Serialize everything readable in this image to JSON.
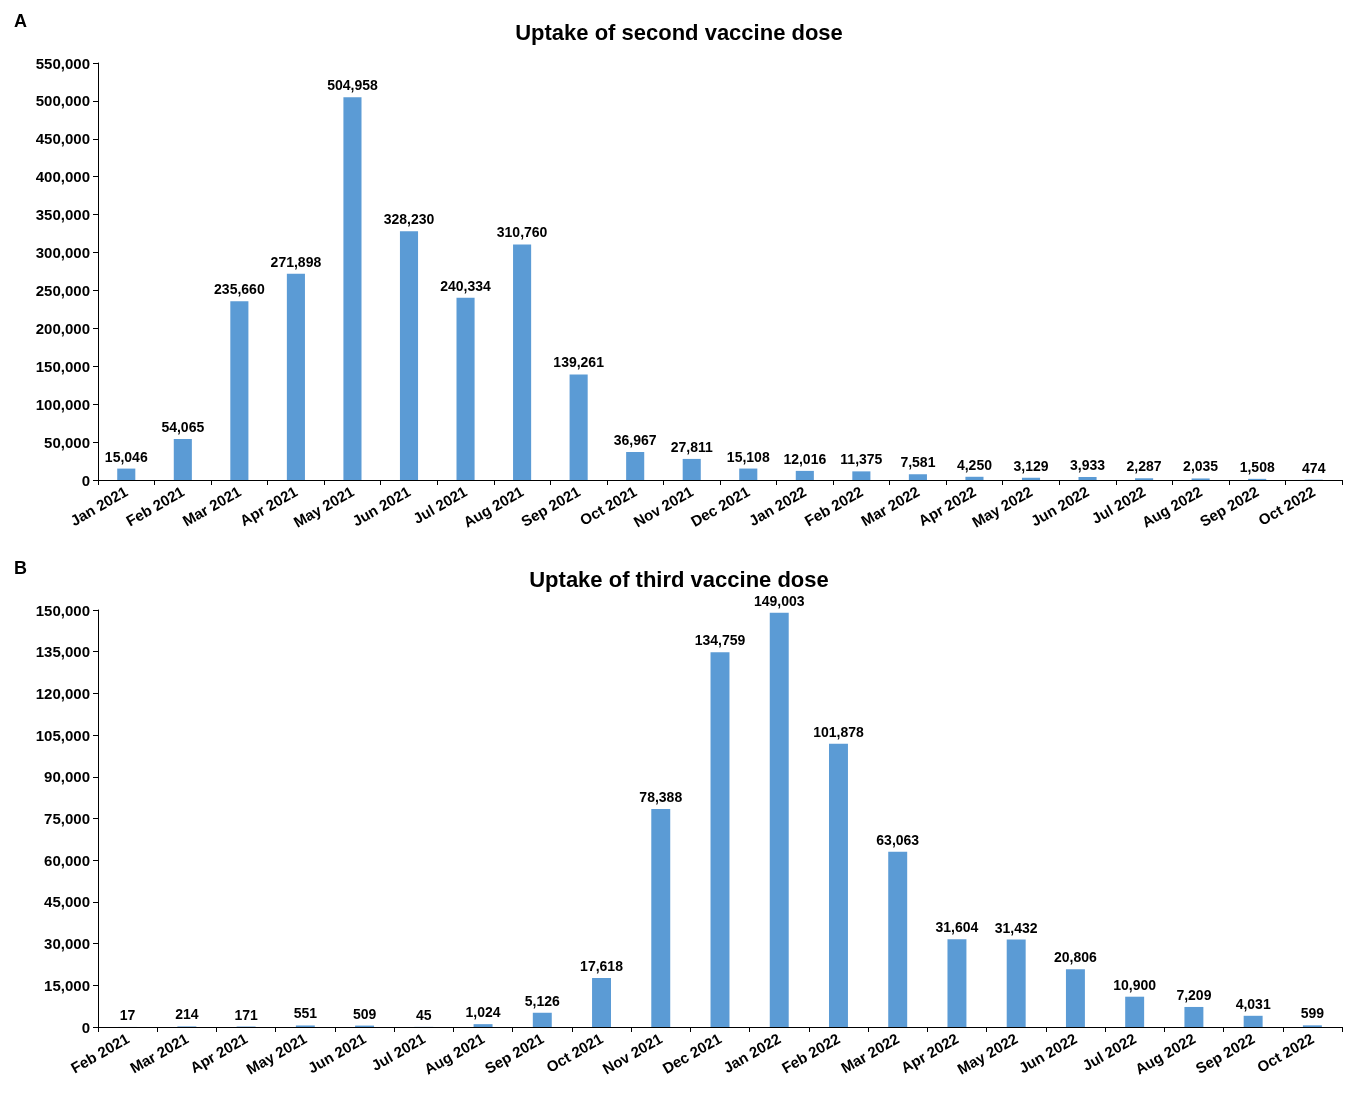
{
  "chart_data": [
    {
      "type": "bar",
      "title": "Uptake of second vaccine dose",
      "annotations": [
        "A"
      ],
      "categories": [
        "Jan 2021",
        "Feb 2021",
        "Mar 2021",
        "Apr 2021",
        "May 2021",
        "Jun 2021",
        "Jul 2021",
        "Aug 2021",
        "Sep 2021",
        "Oct 2021",
        "Nov 2021",
        "Dec 2021",
        "Jan 2022",
        "Feb 2022",
        "Mar 2022",
        "Apr 2022",
        "May 2022",
        "Jun 2022",
        "Jul 2022",
        "Aug 2022",
        "Sep 2022",
        "Oct 2022"
      ],
      "values": [
        15046,
        54065,
        235660,
        271898,
        504958,
        328230,
        240334,
        310760,
        139261,
        36967,
        27811,
        15108,
        12016,
        11375,
        7581,
        4250,
        3129,
        3933,
        2287,
        2035,
        1508,
        474
      ],
      "value_labels": [
        "15,046",
        "54,065",
        "235,660",
        "271,898",
        "504,958",
        "328,230",
        "240,334",
        "310,760",
        "139,261",
        "36,967",
        "27,811",
        "15,108",
        "12,016",
        "11,375",
        "7,581",
        "4,250",
        "3,129",
        "3,933",
        "2,287",
        "2,035",
        "1,508",
        "474"
      ],
      "color": "#5b9bd5",
      "ylim": [
        0,
        550000
      ],
      "yticks": [
        0,
        {
          "value": 50000,
          "label": "50,000"
        },
        {
          "value": 100000,
          "label": "100,000"
        },
        {
          "value": 150000,
          "label": "150,000"
        },
        {
          "value": 200000,
          "label": "200,000"
        },
        {
          "value": 250000,
          "label": "250,000"
        },
        {
          "value": 300000,
          "label": "300,000"
        },
        {
          "value": 350000,
          "label": "350,000"
        },
        {
          "value": 400000,
          "label": "400,000"
        },
        {
          "value": 450000,
          "label": "450,000"
        },
        {
          "value": 500000,
          "label": "500,000"
        },
        {
          "value": 550000,
          "label": "550,000"
        }
      ]
    },
    {
      "type": "bar",
      "title": "Uptake of third vaccine dose",
      "annotations": [
        "B"
      ],
      "categories": [
        "Feb 2021",
        "Mar 2021",
        "Apr 2021",
        "May 2021",
        "Jun 2021",
        "Jul 2021",
        "Aug 2021",
        "Sep 2021",
        "Oct 2021",
        "Nov 2021",
        "Dec 2021",
        "Jan 2022",
        "Feb 2022",
        "Mar 2022",
        "Apr 2022",
        "May 2022",
        "Jun 2022",
        "Jul 2022",
        "Aug 2022",
        "Sep 2022",
        "Oct 2022"
      ],
      "values": [
        17,
        214,
        171,
        551,
        509,
        45,
        1024,
        5126,
        17618,
        78388,
        134759,
        149003,
        101878,
        63063,
        31604,
        31432,
        20806,
        10900,
        7209,
        4031,
        599
      ],
      "value_labels": [
        "17",
        "214",
        "171",
        "551",
        "509",
        "45",
        "1,024",
        "5,126",
        "17,618",
        "78,388",
        "134,759",
        "149,003",
        "101,878",
        "63,063",
        "31,604",
        "31,432",
        "20,806",
        "10,900",
        "7,209",
        "4,031",
        "599"
      ],
      "color": "#5b9bd5",
      "ylim": [
        0,
        150000
      ],
      "yticks": [
        0,
        {
          "value": 15000,
          "label": "15,000"
        },
        {
          "value": 30000,
          "label": "30,000"
        },
        {
          "value": 45000,
          "label": "45,000"
        },
        {
          "value": 60000,
          "label": "60,000"
        },
        {
          "value": 75000,
          "label": "75,000"
        },
        {
          "value": 90000,
          "label": "90,000"
        },
        {
          "value": 105000,
          "label": "105,000"
        },
        {
          "value": 120000,
          "label": "120,000"
        },
        {
          "value": 135000,
          "label": "135,000"
        },
        {
          "value": 150000,
          "label": "150,000"
        }
      ]
    }
  ]
}
